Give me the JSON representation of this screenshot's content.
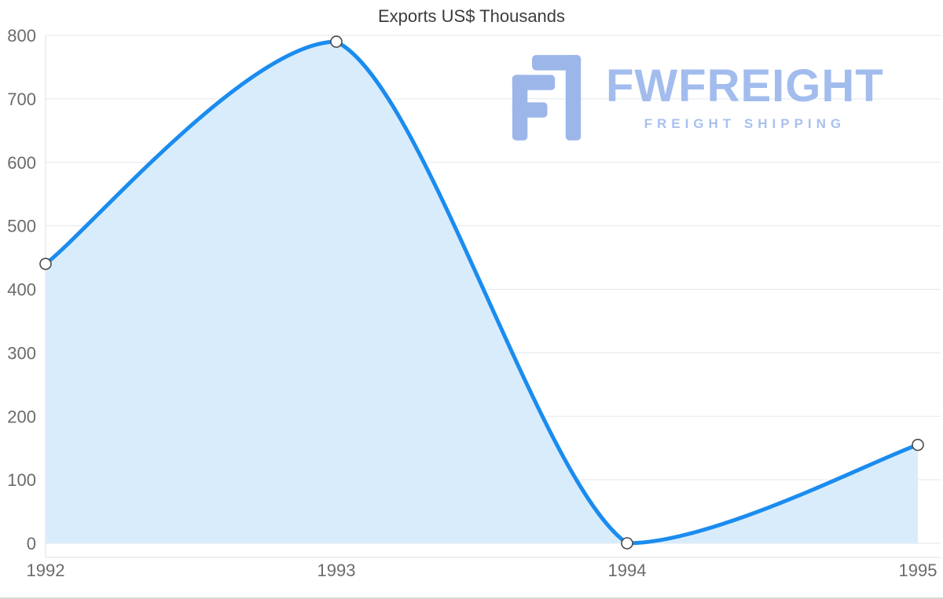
{
  "chart_data": {
    "type": "area",
    "title": "Exports US$ Thousands",
    "categories": [
      "1992",
      "1993",
      "1994",
      "1995"
    ],
    "values": [
      440,
      790,
      0,
      155
    ],
    "series_name": "Exports",
    "xlabel": "",
    "ylabel": "",
    "ylim": [
      0,
      800
    ],
    "y_ticks": [
      0,
      100,
      200,
      300,
      400,
      500,
      600,
      700,
      800
    ],
    "grid": true,
    "legend": false,
    "colors": {
      "line": "#1b8cef",
      "fill": "#d9ecfc",
      "point_fill": "#ffffff",
      "point_stroke": "#4a4a4a",
      "grid": "#e3e7ec",
      "axis_border": "#dcdfe4",
      "tick_text": "#6b6b6b",
      "title_text": "#3c3c3c"
    }
  },
  "watermark": {
    "brand": "FWFREIGHT",
    "tagline": "FREIGHT SHIPPING",
    "brand_color": "#a2bcee",
    "tagline_color": "#a9c0ef",
    "logo_color": "#9cb6ea"
  }
}
